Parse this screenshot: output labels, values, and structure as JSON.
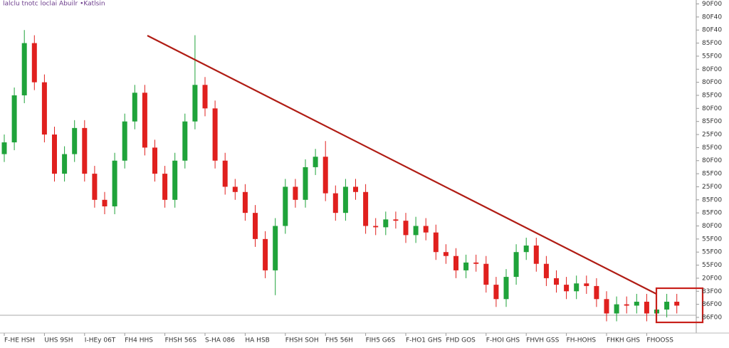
{
  "chart_data": {
    "type": "candlestick",
    "title": "lalclu tnotc loclai Abuilr •Katlsin",
    "categories": [
      "F-HE HSH",
      null,
      null,
      null,
      "UHS 9SH",
      null,
      null,
      null,
      "I-HEy 06T",
      null,
      null,
      null,
      "FH4 HHS",
      null,
      null,
      null,
      "FHSH 56S",
      null,
      null,
      null,
      "S-HA 086",
      null,
      null,
      null,
      "HA HSB",
      null,
      null,
      null,
      "FHSH SOH",
      null,
      null,
      null,
      "FH5 56H",
      null,
      null,
      null,
      "FIH5 G6S",
      null,
      null,
      null,
      "F-HO1 GHS",
      null,
      null,
      null,
      "FHD GOS",
      null,
      null,
      null,
      "F-HOI GHS",
      null,
      null,
      null,
      "FHVH GSS",
      null,
      null,
      null,
      "FH-HOHS",
      null,
      null,
      null,
      "FHKH GHS",
      null,
      null,
      null,
      "FHOOSS",
      null,
      null,
      null
    ],
    "open": [
      12.5,
      13.4,
      17,
      21,
      18,
      14,
      11,
      12.5,
      14.5,
      11,
      9,
      8.5,
      12,
      15,
      17.2,
      13,
      11,
      9,
      12,
      15,
      17.8,
      16,
      12,
      10,
      9.6,
      8,
      6,
      3.6,
      7,
      10,
      9,
      11.5,
      12.3,
      9.5,
      8,
      10,
      9.6,
      7,
      6.9,
      7.5,
      7.4,
      6.3,
      7,
      6.5,
      5,
      4.7,
      3.6,
      4.2,
      4.1,
      2.5,
      1.4,
      3.1,
      5,
      5.5,
      4.1,
      3,
      2.5,
      2,
      2.6,
      2.4,
      1.4,
      0.3,
      1,
      0.9,
      1.2,
      0.3,
      0.6,
      1.2
    ],
    "high": [
      14,
      17.6,
      22,
      21.6,
      18.6,
      14.6,
      13.1,
      15.1,
      15.1,
      11.6,
      9.6,
      12.6,
      15.6,
      17.8,
      17.8,
      13.6,
      11.6,
      12.6,
      15.6,
      21.6,
      18.4,
      16.6,
      12.6,
      10.6,
      10.2,
      8.6,
      6.6,
      7.6,
      10.6,
      10.6,
      12.1,
      12.9,
      13.5,
      10.1,
      10.6,
      10.6,
      10.2,
      7.6,
      8.1,
      8.1,
      8,
      7.7,
      7.6,
      7.1,
      5.6,
      5.3,
      4.8,
      4.8,
      4.7,
      3.1,
      3.7,
      5.6,
      6.1,
      6.1,
      4.7,
      3.6,
      3.1,
      3.2,
      3.2,
      3,
      2,
      1.6,
      1.6,
      1.8,
      1.8,
      1.2,
      1.8,
      1.8
    ],
    "low": [
      11.9,
      12.8,
      16.4,
      17.4,
      13.4,
      10.4,
      10.4,
      11.9,
      10.4,
      8.4,
      7.9,
      7.9,
      11.4,
      14.4,
      12.4,
      10.4,
      8.4,
      8.4,
      11.4,
      14.4,
      15.4,
      11.4,
      9.4,
      9,
      7.4,
      5.4,
      3,
      1.7,
      6.4,
      8.4,
      8.4,
      10.9,
      8.9,
      7.4,
      7.4,
      9,
      6.4,
      6.3,
      6.3,
      6.8,
      5.7,
      5.7,
      5.9,
      4.4,
      4.1,
      3,
      3,
      3.5,
      1.9,
      0.8,
      0.8,
      2.5,
      4.4,
      3.5,
      2.4,
      1.9,
      1.4,
      1.4,
      1.8,
      0.8,
      -0.3,
      -0.3,
      0.3,
      0.3,
      -0.3,
      -0.3,
      0,
      0.3
    ],
    "close": [
      13.4,
      17,
      21,
      18,
      14,
      11,
      12.5,
      14.5,
      11,
      9,
      8.5,
      12,
      15,
      17.2,
      13,
      11,
      9,
      12,
      15,
      17.8,
      16,
      12,
      10,
      9.6,
      8,
      6,
      3.6,
      7,
      10,
      9,
      11.5,
      12.3,
      9.5,
      8,
      10,
      9.6,
      7,
      6.9,
      7.5,
      7.4,
      6.3,
      7,
      6.5,
      5,
      4.7,
      3.6,
      4.2,
      4.1,
      2.5,
      1.4,
      3.1,
      5,
      5.5,
      4.1,
      3,
      2.5,
      2,
      2.6,
      2.4,
      1.4,
      0.3,
      1,
      0.9,
      1.2,
      0.3,
      0.6,
      1.2,
      0.9
    ],
    "up_color": "#1fa33a",
    "down_color": "#e0201e",
    "ylim": [
      -1.2,
      24.3
    ],
    "yticks": [
      {
        "value": 0,
        "label": "86F00"
      },
      {
        "value": 1,
        "label": "86F00"
      },
      {
        "value": 2,
        "label": "83F00"
      },
      {
        "value": 3,
        "label": "20F00"
      },
      {
        "value": 4,
        "label": "55F00"
      },
      {
        "value": 5,
        "label": "55F00"
      },
      {
        "value": 6,
        "label": "55F00"
      },
      {
        "value": 7,
        "label": "80F00"
      },
      {
        "value": 8,
        "label": "85F00"
      },
      {
        "value": 9,
        "label": "85F00"
      },
      {
        "value": 10,
        "label": "25F00"
      },
      {
        "value": 11,
        "label": "85F00"
      },
      {
        "value": 12,
        "label": "80F00"
      },
      {
        "value": 13,
        "label": "85F00"
      },
      {
        "value": 14,
        "label": "25F00"
      },
      {
        "value": 15,
        "label": "85F00"
      },
      {
        "value": 16,
        "label": "80F00"
      },
      {
        "value": 17,
        "label": "85F00"
      },
      {
        "value": 18,
        "label": "80F00"
      },
      {
        "value": 19,
        "label": "80F00"
      },
      {
        "value": 20,
        "label": "55F00"
      },
      {
        "value": 21,
        "label": "85F00"
      },
      {
        "value": 22,
        "label": "80F40"
      },
      {
        "value": 23,
        "label": "80F40"
      },
      {
        "value": 24,
        "label": "90F00"
      }
    ],
    "grid": false
  }
}
